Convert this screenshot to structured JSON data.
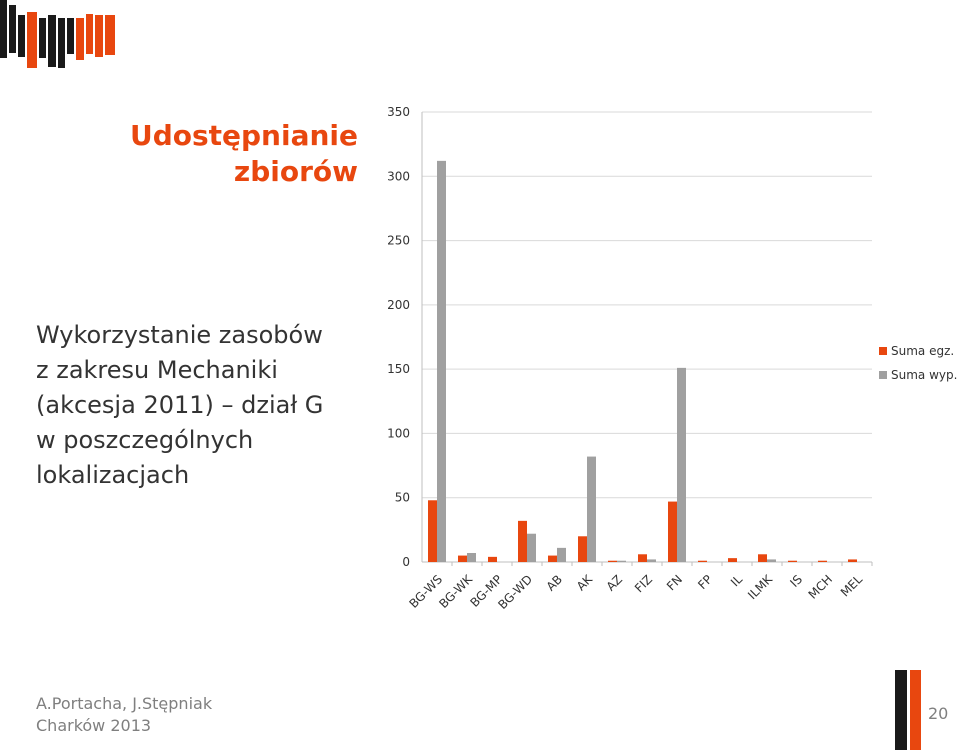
{
  "colors": {
    "accent": "#e8470f",
    "series1": "#e8470f",
    "series2": "#a0a0a0",
    "dark": "#1a1a1a",
    "text": "#333333",
    "muted": "#7f7f7f",
    "grid": "#d9d9d9"
  },
  "slide": {
    "title_line1": "Udostępnianie",
    "title_line2": "zbiorów",
    "subtitle_lines": [
      "Wykorzystanie zasobów",
      "z zakresu Mechaniki",
      "(akcesja 2011) – dział G",
      "w poszczególnych",
      "lokalizacjach"
    ],
    "author": "A.Portacha, J.Stępniak",
    "venue": "Charków 2013",
    "page_number": "20"
  },
  "chart_data": {
    "type": "bar",
    "title": "",
    "xlabel": "",
    "ylabel": "",
    "ylim": [
      0,
      350
    ],
    "yticks": [
      0,
      50,
      100,
      150,
      200,
      250,
      300,
      350
    ],
    "grid": true,
    "legend_position": "right",
    "categories": [
      "BG-WS",
      "BG-WK",
      "BG-MP",
      "BG-WD",
      "AB",
      "AK",
      "AZ",
      "FIZ",
      "FN",
      "FP",
      "IL",
      "ILMK",
      "IS",
      "MCH",
      "MEL"
    ],
    "series": [
      {
        "name": "Suma egz.",
        "values": [
          48,
          5,
          4,
          32,
          5,
          20,
          1,
          6,
          47,
          1,
          3,
          6,
          1,
          1,
          2
        ]
      },
      {
        "name": "Suma wyp.",
        "values": [
          312,
          7,
          0,
          22,
          11,
          82,
          1,
          2,
          151,
          0,
          0,
          2,
          0,
          0,
          0
        ]
      }
    ]
  }
}
